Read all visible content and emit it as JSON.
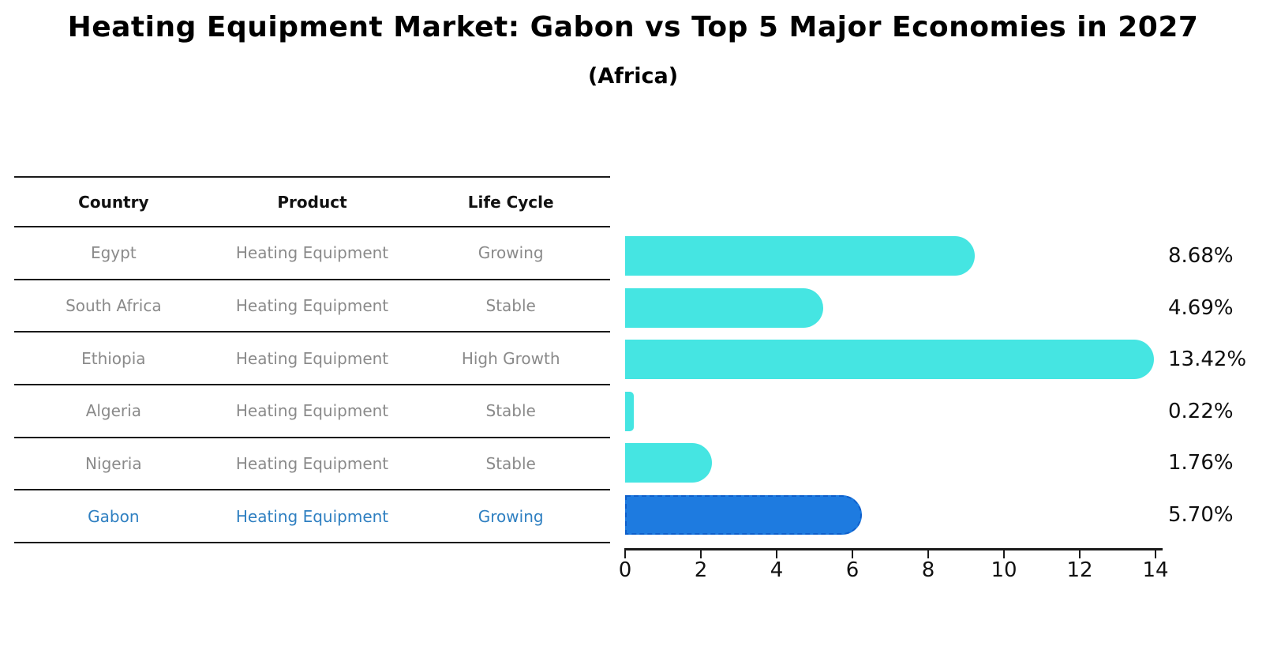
{
  "title": "Heating Equipment Market: Gabon vs Top 5 Major Economies in 2027",
  "subtitle": "(Africa)",
  "table": {
    "headers": [
      "Country",
      "Product",
      "Life Cycle"
    ]
  },
  "chart_data": {
    "type": "bar",
    "orientation": "horizontal",
    "title": "Heating Equipment Market: Gabon vs Top 5 Major Economies in 2027",
    "subtitle": "(Africa)",
    "categories": [
      "Egypt",
      "South Africa",
      "Ethiopia",
      "Algeria",
      "Nigeria",
      "Gabon"
    ],
    "values": [
      8.68,
      4.69,
      13.42,
      0.22,
      1.76,
      5.7
    ],
    "value_labels": [
      "8.68%",
      "4.69%",
      "13.42%",
      "0.22%",
      "1.76%",
      "5.70%"
    ],
    "table_rows": [
      {
        "country": "Egypt",
        "product": "Heating Equipment",
        "life_cycle": "Growing"
      },
      {
        "country": "South Africa",
        "product": "Heating Equipment",
        "life_cycle": "Stable"
      },
      {
        "country": "Ethiopia",
        "product": "Heating Equipment",
        "life_cycle": "High Growth"
      },
      {
        "country": "Algeria",
        "product": "Heating Equipment",
        "life_cycle": "Stable"
      },
      {
        "country": "Nigeria",
        "product": "Heating Equipment",
        "life_cycle": "Stable"
      },
      {
        "country": "Gabon",
        "product": "Heating Equipment",
        "life_cycle": "Growing"
      }
    ],
    "highlight_index": 5,
    "xlim": [
      0,
      14
    ],
    "x_ticks": [
      "0",
      "2",
      "4",
      "6",
      "8",
      "10",
      "12",
      "14"
    ],
    "grid": false,
    "legend": false,
    "colors": {
      "bar": "#45e5e2",
      "highlight_bar": "#1e7be0",
      "highlight_border": "#0e5fcb",
      "highlight_text": "#2e7fc1",
      "row_text": "#8a8a8a",
      "axis": "#1a1a1a"
    }
  }
}
